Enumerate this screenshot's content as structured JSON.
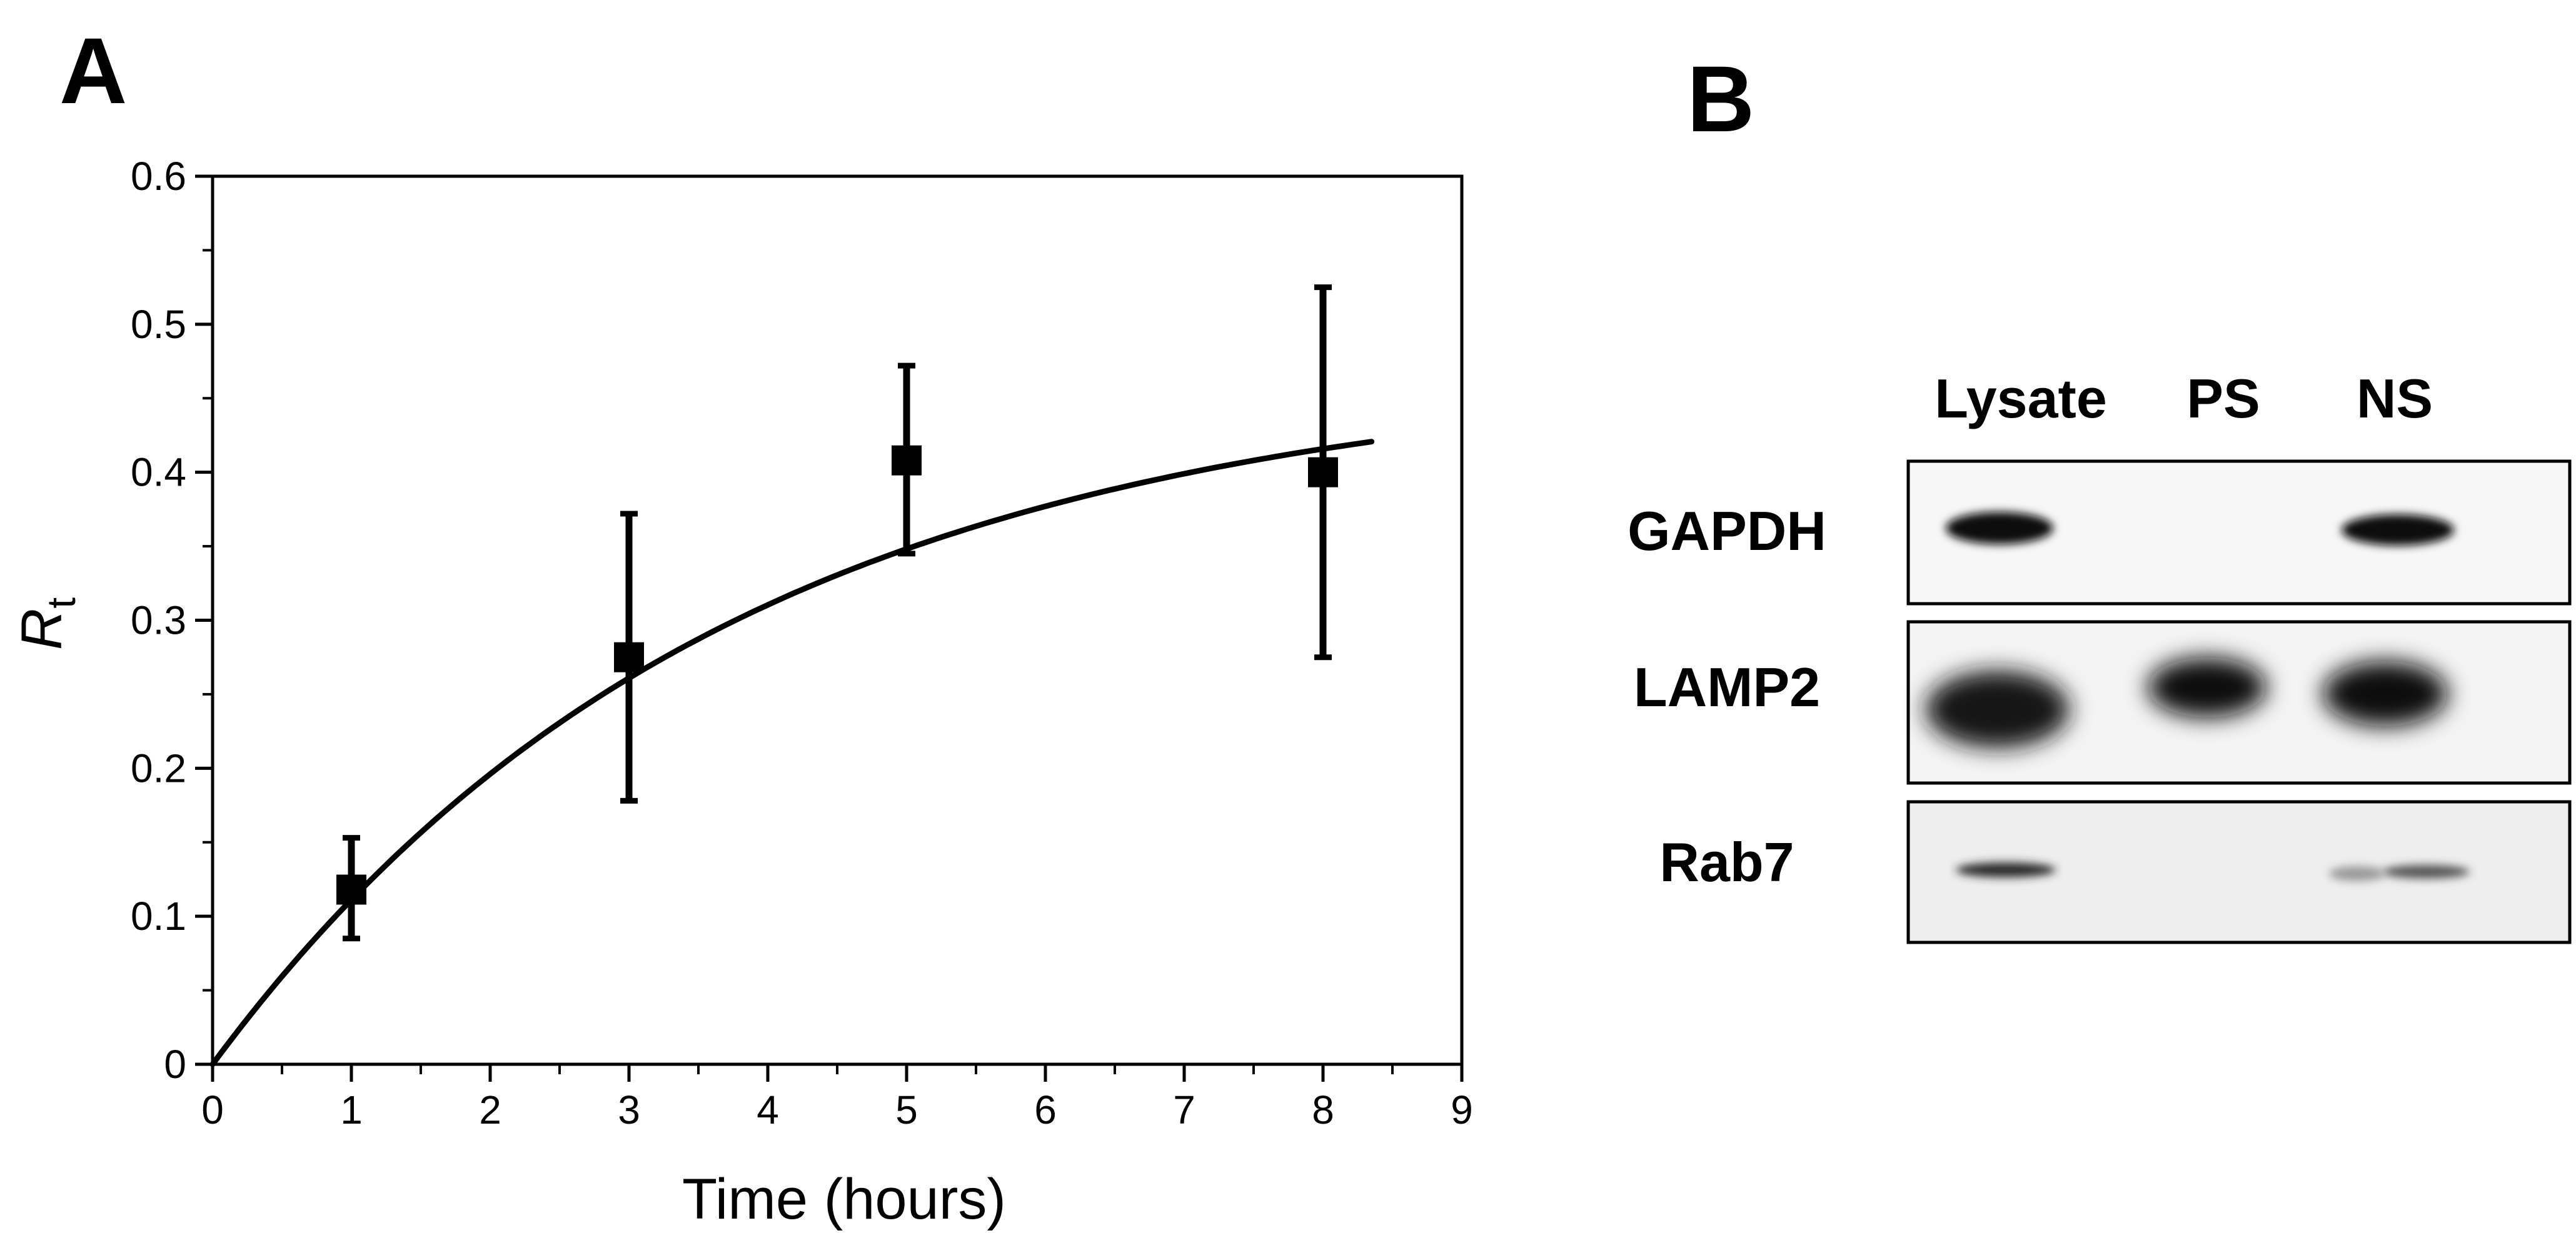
{
  "panel_a": {
    "letter": "A"
  },
  "panel_b": {
    "letter": "B",
    "lanes": [
      "Lysate",
      "PS",
      "NS"
    ],
    "rows": [
      {
        "label": "GAPDH",
        "intensity": [
          1.0,
          0.0,
          0.92
        ]
      },
      {
        "label": "LAMP2",
        "intensity": [
          0.95,
          1.0,
          0.95
        ]
      },
      {
        "label": "Rab7",
        "intensity": [
          0.7,
          0.0,
          0.4
        ]
      }
    ]
  },
  "chart_data": {
    "type": "scatter",
    "xlabel": "Time (hours)",
    "ylabel": "R",
    "ylabel_subscript": "t",
    "xlim": [
      0,
      9
    ],
    "ylim": [
      0,
      0.6
    ],
    "x_ticks": [
      0,
      1,
      2,
      3,
      4,
      5,
      6,
      7,
      8,
      9
    ],
    "y_ticks": [
      0,
      0.1,
      0.2,
      0.3,
      0.4,
      0.5,
      0.6
    ],
    "y_tick_labels": [
      "0",
      "0.1",
      "0.2",
      "0.3",
      "0.4",
      "0.5",
      "0.6"
    ],
    "grid": false,
    "points": [
      {
        "x": 1,
        "y": 0.118,
        "err_low": 0.085,
        "err_high": 0.153
      },
      {
        "x": 3,
        "y": 0.275,
        "err_low": 0.178,
        "err_high": 0.372
      },
      {
        "x": 5,
        "y": 0.408,
        "err_low": 0.345,
        "err_high": 0.472
      },
      {
        "x": 8,
        "y": 0.4,
        "err_low": 0.275,
        "err_high": 0.525
      }
    ],
    "fit": {
      "type": "exponential saturation",
      "equation": "y = A * (1 - exp(-k*x))",
      "A": 0.47,
      "k": 0.27,
      "x_range": [
        0,
        8.35
      ]
    }
  }
}
